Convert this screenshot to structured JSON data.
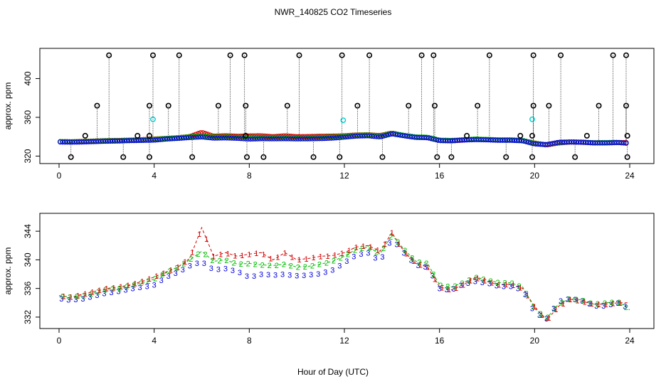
{
  "chart_data": {
    "title": "NWR_140825  CO2 Timeseries",
    "xlabel": "Hour of Day (UTC)",
    "colors": {
      "1": "#d40000",
      "2": "#00bb00",
      "3": "#0000dd",
      "flag": "#000000",
      "cyan": "#00cccc",
      "line1": "#d40000",
      "line2": "#00bb00"
    },
    "panels": [
      {
        "type": "scatter",
        "ylabel": "approx. ppm",
        "xlim": [
          0,
          24
        ],
        "ylim": [
          316,
          426
        ],
        "xticks": [
          0,
          4,
          8,
          12,
          16,
          20,
          24
        ],
        "yticks": [
          320,
          360,
          400
        ],
        "series_note": "dense colored circles along the baseline; black circles are flagged outliers drawn with dotted vertical lines",
        "outliers_high": [
          2.1,
          3.95,
          5.05,
          7.2,
          7.8,
          10.1,
          11.9,
          13.05,
          15.25,
          15.75,
          18.1,
          19.95,
          21.1,
          23.3,
          23.85
        ],
        "outliers_high_value": 424,
        "outliers_372": [
          1.6,
          3.8,
          4.6,
          6.7,
          7.85,
          9.6,
          12.55,
          14.7,
          15.8,
          17.6,
          19.95,
          20.6,
          22.7,
          23.85
        ],
        "outliers_372_value": 372,
        "outliers_low": [
          0.5,
          2.7,
          3.8,
          5.6,
          7.9,
          8.6,
          10.7,
          11.8,
          13.6,
          15.9,
          16.5,
          18.8,
          19.9,
          21.7,
          23.9
        ],
        "outliers_low_value": 319,
        "outliers_mid": [
          1.1,
          3.3,
          3.8,
          7.85,
          17.15,
          19.4,
          19.9,
          22.2,
          23.9
        ],
        "outliers_mid_value": 341,
        "cyan_points": [
          {
            "x": 3.95,
            "y": 358
          },
          {
            "x": 11.95,
            "y": 357
          },
          {
            "x": 19.9,
            "y": 358
          }
        ]
      },
      {
        "type": "line",
        "ylabel": "approx. ppm",
        "xlim": [
          0,
          24
        ],
        "ylim": [
          330.8,
          346
        ],
        "xticks": [
          0,
          4,
          8,
          12,
          16,
          20,
          24
        ],
        "yticks": [
          332,
          336,
          340,
          344
        ],
        "series": [
          {
            "name": "1",
            "marker": "1"
          },
          {
            "name": "2",
            "marker": "2"
          },
          {
            "name": "3",
            "marker": "3"
          }
        ],
        "x": [
          0,
          0.5,
          1,
          1.5,
          2,
          2.5,
          3,
          3.5,
          4,
          4.5,
          5,
          5.5,
          6,
          6.5,
          7,
          7.5,
          8,
          8.5,
          9,
          9.5,
          10,
          10.5,
          11,
          11.5,
          12,
          12.5,
          13,
          13.5,
          14,
          14.5,
          15,
          15.5,
          16,
          16.5,
          17,
          17.5,
          18,
          18.5,
          19,
          19.5,
          20,
          20.5,
          21,
          21.5,
          22,
          22.5,
          23,
          23.5,
          24
        ],
        "values_1": [
          335.0,
          334.8,
          335.2,
          335.6,
          336.0,
          336.2,
          336.5,
          337.0,
          337.6,
          338.3,
          339.0,
          340.2,
          344.5,
          340.5,
          341.0,
          340.5,
          340.8,
          341.0,
          340.0,
          341.0,
          340.0,
          340.2,
          340.5,
          340.6,
          341.0,
          341.8,
          342.0,
          341.2,
          343.8,
          341.2,
          339.5,
          339.0,
          336.2,
          335.8,
          336.5,
          337.5,
          337.0,
          336.5,
          336.6,
          336.0,
          333.5,
          331.5,
          333.5,
          334.5,
          334.2,
          333.8,
          333.8,
          334.0,
          334.0
        ],
        "values_2": [
          335.0,
          334.8,
          335.0,
          335.4,
          335.9,
          336.0,
          336.4,
          336.8,
          337.3,
          338.2,
          339.0,
          340.0,
          341.2,
          339.8,
          340.0,
          339.4,
          339.5,
          339.3,
          339.2,
          339.4,
          339.0,
          339.1,
          339.4,
          339.8,
          340.5,
          341.5,
          341.8,
          340.8,
          343.5,
          341.5,
          339.8,
          339.5,
          336.5,
          336.2,
          336.8,
          337.6,
          337.2,
          336.8,
          336.8,
          336.2,
          333.2,
          331.8,
          333.8,
          334.6,
          334.4,
          333.8,
          334.0,
          334.2,
          333.0
        ],
        "values_3": [
          334.6,
          334.4,
          334.6,
          335.0,
          335.4,
          335.6,
          336.0,
          336.2,
          336.5,
          337.6,
          338.3,
          339.2,
          339.8,
          338.6,
          338.8,
          338.4,
          337.6,
          338.0,
          337.9,
          338.0,
          337.8,
          337.9,
          338.1,
          338.6,
          339.6,
          340.7,
          341.0,
          339.8,
          343.0,
          341.0,
          339.3,
          339.0,
          336.0,
          335.8,
          336.6,
          337.0,
          336.8,
          336.3,
          336.3,
          335.8,
          332.6,
          331.8,
          334.2,
          334.6,
          334.3,
          333.6,
          333.6,
          334.0,
          333.2
        ]
      }
    ]
  }
}
